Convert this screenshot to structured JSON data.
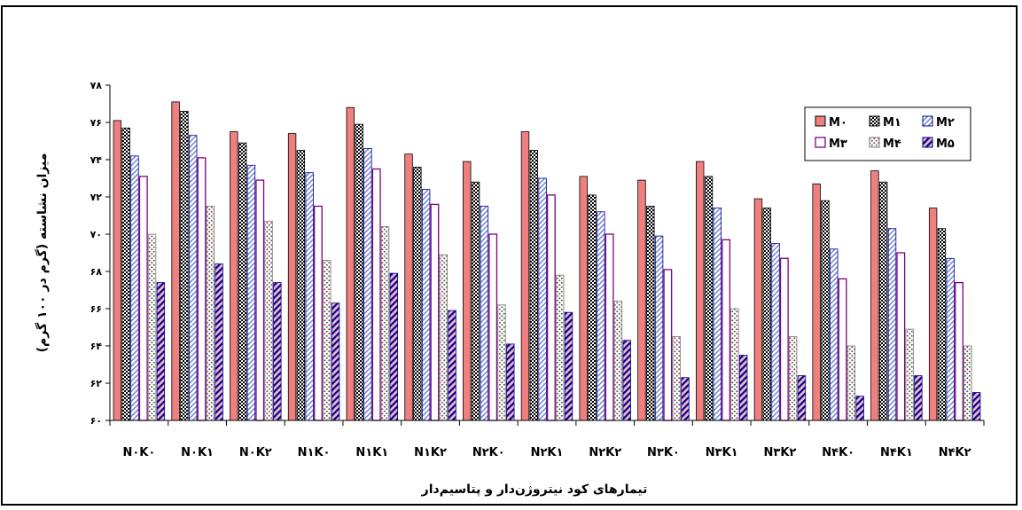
{
  "chart_data": {
    "type": "bar",
    "title": "",
    "xlabel": "تیمارهای کود نیتروژن‌دار و پتاسیم‌دار",
    "ylabel": "میزان نشاسته (گرم در ۱۰۰ گرم)",
    "ylim": [
      60,
      78
    ],
    "yticks": [
      "۶۰",
      "۶۲",
      "۶۴",
      "۶۶",
      "۶۸",
      "۷۰",
      "۷۲",
      "۷۴",
      "۷۶",
      "۷۸"
    ],
    "ytick_values": [
      60,
      62,
      64,
      66,
      68,
      70,
      72,
      74,
      76,
      78
    ],
    "grid": false,
    "legend_position": "top-right",
    "categories": [
      "N۰K۰",
      "N۰K۱",
      "N۰K۲",
      "N۱K۰",
      "N۱K۱",
      "N۱K۲",
      "N۲K۰",
      "N۲K۱",
      "N۲K۲",
      "N۳K۰",
      "N۳K۱",
      "N۳K۲",
      "N۴K۰",
      "N۴K۱",
      "N۴K۲"
    ],
    "series": [
      {
        "name": "M۰",
        "color": "#f08080",
        "pattern": "solid",
        "values": [
          76.1,
          77.1,
          75.5,
          75.4,
          76.8,
          74.3,
          73.9,
          75.5,
          73.1,
          72.9,
          73.9,
          71.9,
          72.7,
          73.4,
          71.4
        ]
      },
      {
        "name": "M۱",
        "color": "#000000",
        "pattern": "checker",
        "values": [
          75.7,
          76.6,
          74.9,
          74.5,
          75.9,
          73.6,
          72.8,
          74.5,
          72.1,
          71.5,
          73.1,
          71.4,
          71.8,
          72.8,
          70.3
        ]
      },
      {
        "name": "M۲",
        "color": "#000099",
        "pattern": "diag-light",
        "values": [
          74.2,
          75.3,
          73.7,
          73.3,
          74.6,
          72.4,
          71.5,
          73.0,
          71.2,
          69.9,
          71.4,
          69.5,
          69.2,
          70.3,
          68.7
        ]
      },
      {
        "name": "M۳",
        "color": "#800080",
        "pattern": "outline",
        "values": [
          73.1,
          74.1,
          72.9,
          71.5,
          73.5,
          71.6,
          70.0,
          72.1,
          70.0,
          68.1,
          69.7,
          68.7,
          67.6,
          69.0,
          67.4
        ]
      },
      {
        "name": "M۴",
        "color": "#993366",
        "pattern": "dots",
        "values": [
          70.0,
          71.5,
          70.7,
          68.6,
          70.4,
          68.9,
          66.2,
          67.8,
          66.4,
          64.5,
          66.0,
          64.5,
          64.0,
          64.9,
          64.0
        ]
      },
      {
        "name": "M۵",
        "color": "#000099",
        "pattern": "diag-dark",
        "values": [
          67.4,
          68.4,
          67.4,
          66.3,
          67.9,
          65.9,
          64.1,
          65.8,
          64.3,
          62.3,
          63.5,
          62.4,
          61.3,
          62.4,
          61.5
        ]
      }
    ]
  }
}
